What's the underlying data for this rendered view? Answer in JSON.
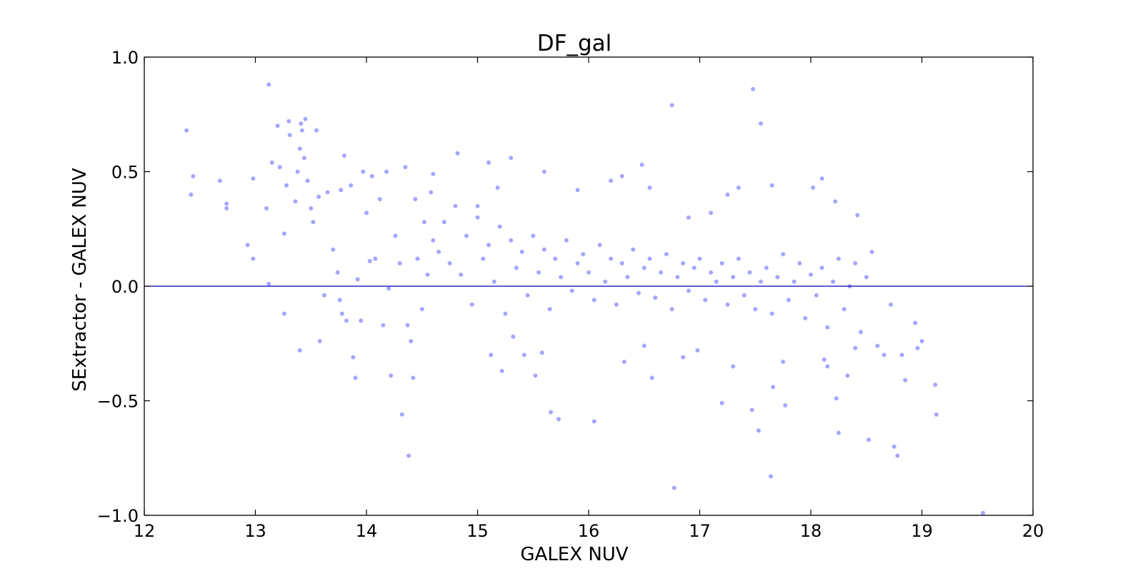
{
  "chart_data": {
    "type": "scatter",
    "title": "DF_gal",
    "xlabel": "GALEX NUV",
    "ylabel": "SExtractor - GALEX NUV",
    "xlim": [
      12,
      20
    ],
    "ylim": [
      -1.0,
      1.0
    ],
    "xticks": [
      "12",
      "13",
      "14",
      "15",
      "16",
      "17",
      "18",
      "19",
      "20"
    ],
    "yticks": [
      "−1.0",
      "−0.5",
      "0.0",
      "0.5",
      "1.0"
    ],
    "grid": false,
    "legend": "none",
    "reference_line_y": 0.0,
    "colors": {
      "points": "#0000ff",
      "line": "#0000b0"
    },
    "series": [
      {
        "points": [
          [
            12.38,
            0.68
          ],
          [
            12.42,
            0.4
          ],
          [
            12.44,
            0.48
          ],
          [
            12.68,
            0.46
          ],
          [
            12.74,
            0.36
          ],
          [
            12.74,
            0.34
          ],
          [
            12.93,
            0.18
          ],
          [
            12.98,
            0.12
          ],
          [
            12.98,
            0.47
          ],
          [
            13.12,
            0.88
          ],
          [
            13.1,
            0.34
          ],
          [
            13.12,
            0.01
          ],
          [
            13.15,
            0.54
          ],
          [
            13.2,
            0.7
          ],
          [
            13.22,
            0.52
          ],
          [
            13.26,
            0.23
          ],
          [
            13.26,
            -0.12
          ],
          [
            13.28,
            0.44
          ],
          [
            13.3,
            0.72
          ],
          [
            13.31,
            0.66
          ],
          [
            13.36,
            0.37
          ],
          [
            13.38,
            0.5
          ],
          [
            13.4,
            0.6
          ],
          [
            13.4,
            -0.28
          ],
          [
            13.41,
            0.71
          ],
          [
            13.42,
            0.68
          ],
          [
            13.44,
            0.56
          ],
          [
            13.45,
            0.73
          ],
          [
            13.47,
            0.46
          ],
          [
            13.5,
            0.34
          ],
          [
            13.52,
            0.28
          ],
          [
            13.55,
            0.68
          ],
          [
            13.57,
            0.39
          ],
          [
            13.58,
            -0.24
          ],
          [
            13.62,
            -0.04
          ],
          [
            13.65,
            0.41
          ],
          [
            13.7,
            0.16
          ],
          [
            13.74,
            0.06
          ],
          [
            13.77,
            0.42
          ],
          [
            13.78,
            -0.12
          ],
          [
            13.8,
            0.57
          ],
          [
            13.82,
            -0.15
          ],
          [
            13.86,
            0.44
          ],
          [
            13.88,
            -0.31
          ],
          [
            13.9,
            -0.4
          ],
          [
            13.92,
            0.03
          ],
          [
            13.95,
            -0.15
          ],
          [
            13.97,
            0.5
          ],
          [
            14.0,
            0.32
          ],
          [
            14.03,
            0.11
          ],
          [
            14.05,
            0.48
          ],
          [
            14.08,
            0.12
          ],
          [
            14.12,
            0.38
          ],
          [
            14.15,
            -0.17
          ],
          [
            14.18,
            0.5
          ],
          [
            14.2,
            -0.01
          ],
          [
            14.22,
            -0.39
          ],
          [
            14.26,
            0.22
          ],
          [
            14.3,
            0.1
          ],
          [
            14.32,
            -0.56
          ],
          [
            14.35,
            0.52
          ],
          [
            14.37,
            -0.17
          ],
          [
            14.38,
            -0.74
          ],
          [
            14.4,
            -0.24
          ],
          [
            14.42,
            -0.4
          ],
          [
            14.44,
            0.38
          ],
          [
            14.46,
            0.12
          ],
          [
            14.5,
            -0.1
          ],
          [
            14.52,
            0.28
          ],
          [
            14.55,
            0.05
          ],
          [
            14.58,
            0.41
          ],
          [
            14.6,
            0.2
          ],
          [
            13.76,
            -0.06
          ],
          [
            16.77,
            -0.88
          ],
          [
            19.55,
            -0.99
          ],
          [
            16.75,
            0.79
          ],
          [
            17.48,
            0.86
          ],
          [
            17.55,
            0.71
          ],
          [
            17.1,
            0.32
          ],
          [
            16.9,
            0.3
          ],
          [
            14.65,
            0.15
          ],
          [
            14.7,
            0.28
          ],
          [
            14.75,
            0.1
          ],
          [
            14.8,
            0.35
          ],
          [
            14.85,
            0.05
          ],
          [
            14.9,
            0.22
          ],
          [
            14.95,
            -0.08
          ],
          [
            15.0,
            0.3
          ],
          [
            15.05,
            0.12
          ],
          [
            15.1,
            0.18
          ],
          [
            15.15,
            0.02
          ],
          [
            15.2,
            0.26
          ],
          [
            15.25,
            -0.12
          ],
          [
            15.3,
            0.2
          ],
          [
            15.35,
            0.08
          ],
          [
            15.4,
            0.15
          ],
          [
            15.45,
            -0.04
          ],
          [
            15.5,
            0.22
          ],
          [
            15.55,
            0.06
          ],
          [
            15.6,
            0.16
          ],
          [
            15.65,
            -0.1
          ],
          [
            15.7,
            0.12
          ],
          [
            15.75,
            0.04
          ],
          [
            15.8,
            0.2
          ],
          [
            15.85,
            -0.02
          ],
          [
            15.9,
            0.1
          ],
          [
            15.95,
            0.14
          ],
          [
            16.0,
            0.06
          ],
          [
            16.05,
            -0.06
          ],
          [
            16.1,
            0.18
          ],
          [
            16.15,
            0.02
          ],
          [
            16.2,
            0.12
          ],
          [
            16.25,
            -0.08
          ],
          [
            16.3,
            0.1
          ],
          [
            16.35,
            0.04
          ],
          [
            16.4,
            0.16
          ],
          [
            16.45,
            -0.03
          ],
          [
            16.5,
            0.08
          ],
          [
            16.55,
            0.12
          ],
          [
            16.6,
            -0.05
          ],
          [
            16.65,
            0.06
          ],
          [
            16.7,
            0.14
          ],
          [
            16.75,
            -0.1
          ],
          [
            16.8,
            0.04
          ],
          [
            16.85,
            0.1
          ],
          [
            16.9,
            -0.02
          ],
          [
            16.95,
            0.08
          ],
          [
            17.0,
            0.12
          ],
          [
            17.05,
            -0.06
          ],
          [
            17.1,
            0.06
          ],
          [
            17.15,
            0.02
          ],
          [
            17.2,
            0.1
          ],
          [
            17.25,
            -0.08
          ],
          [
            17.3,
            0.04
          ],
          [
            17.35,
            0.12
          ],
          [
            17.4,
            -0.04
          ],
          [
            17.45,
            0.06
          ],
          [
            17.5,
            -0.1
          ],
          [
            17.55,
            0.02
          ],
          [
            17.6,
            0.08
          ],
          [
            17.65,
            -0.12
          ],
          [
            17.7,
            0.04
          ],
          [
            17.75,
            0.14
          ],
          [
            17.8,
            -0.06
          ],
          [
            17.85,
            0.02
          ],
          [
            17.9,
            0.1
          ],
          [
            17.95,
            -0.14
          ],
          [
            18.0,
            0.05
          ],
          [
            18.05,
            -0.04
          ],
          [
            18.1,
            0.08
          ],
          [
            18.15,
            -0.18
          ],
          [
            18.2,
            0.02
          ],
          [
            18.25,
            0.12
          ],
          [
            18.3,
            -0.1
          ],
          [
            18.35,
            0.0
          ],
          [
            18.4,
            0.1
          ],
          [
            18.45,
            -0.2
          ],
          [
            18.5,
            0.04
          ],
          [
            18.55,
            0.15
          ],
          [
            18.6,
            -0.26
          ],
          [
            18.66,
            -0.3
          ],
          [
            18.72,
            -0.08
          ],
          [
            18.75,
            -0.7
          ],
          [
            18.78,
            -0.74
          ],
          [
            18.82,
            -0.3
          ],
          [
            18.85,
            -0.41
          ],
          [
            18.94,
            -0.16
          ],
          [
            18.96,
            -0.27
          ],
          [
            19.0,
            -0.24
          ],
          [
            19.12,
            -0.43
          ],
          [
            19.13,
            -0.56
          ],
          [
            18.52,
            -0.67
          ],
          [
            18.25,
            -0.64
          ],
          [
            18.23,
            -0.49
          ],
          [
            17.64,
            -0.83
          ],
          [
            17.53,
            -0.63
          ],
          [
            17.47,
            -0.54
          ],
          [
            17.2,
            -0.51
          ],
          [
            17.77,
            -0.52
          ],
          [
            17.66,
            -0.44
          ],
          [
            16.05,
            -0.59
          ],
          [
            15.73,
            -0.58
          ],
          [
            15.66,
            -0.55
          ],
          [
            15.52,
            -0.39
          ],
          [
            15.42,
            -0.3
          ],
          [
            15.22,
            -0.37
          ],
          [
            15.12,
            -0.3
          ],
          [
            16.57,
            -0.4
          ],
          [
            16.32,
            -0.33
          ],
          [
            16.5,
            -0.26
          ],
          [
            18.33,
            -0.39
          ],
          [
            18.12,
            -0.32
          ],
          [
            18.15,
            -0.35
          ],
          [
            18.4,
            -0.27
          ],
          [
            17.3,
            -0.35
          ],
          [
            17.75,
            -0.33
          ],
          [
            16.85,
            -0.31
          ],
          [
            16.98,
            -0.28
          ],
          [
            15.58,
            -0.29
          ],
          [
            15.32,
            -0.22
          ],
          [
            17.65,
            0.44
          ],
          [
            18.1,
            0.47
          ],
          [
            18.02,
            0.43
          ],
          [
            18.22,
            0.37
          ],
          [
            18.42,
            0.31
          ],
          [
            17.35,
            0.43
          ],
          [
            17.25,
            0.4
          ],
          [
            16.48,
            0.53
          ],
          [
            16.55,
            0.43
          ],
          [
            16.3,
            0.48
          ],
          [
            16.2,
            0.46
          ],
          [
            15.9,
            0.42
          ],
          [
            15.6,
            0.5
          ],
          [
            15.1,
            0.54
          ],
          [
            15.18,
            0.43
          ],
          [
            15.3,
            0.56
          ],
          [
            15.0,
            0.35
          ],
          [
            14.82,
            0.58
          ],
          [
            14.6,
            0.49
          ]
        ]
      }
    ]
  }
}
